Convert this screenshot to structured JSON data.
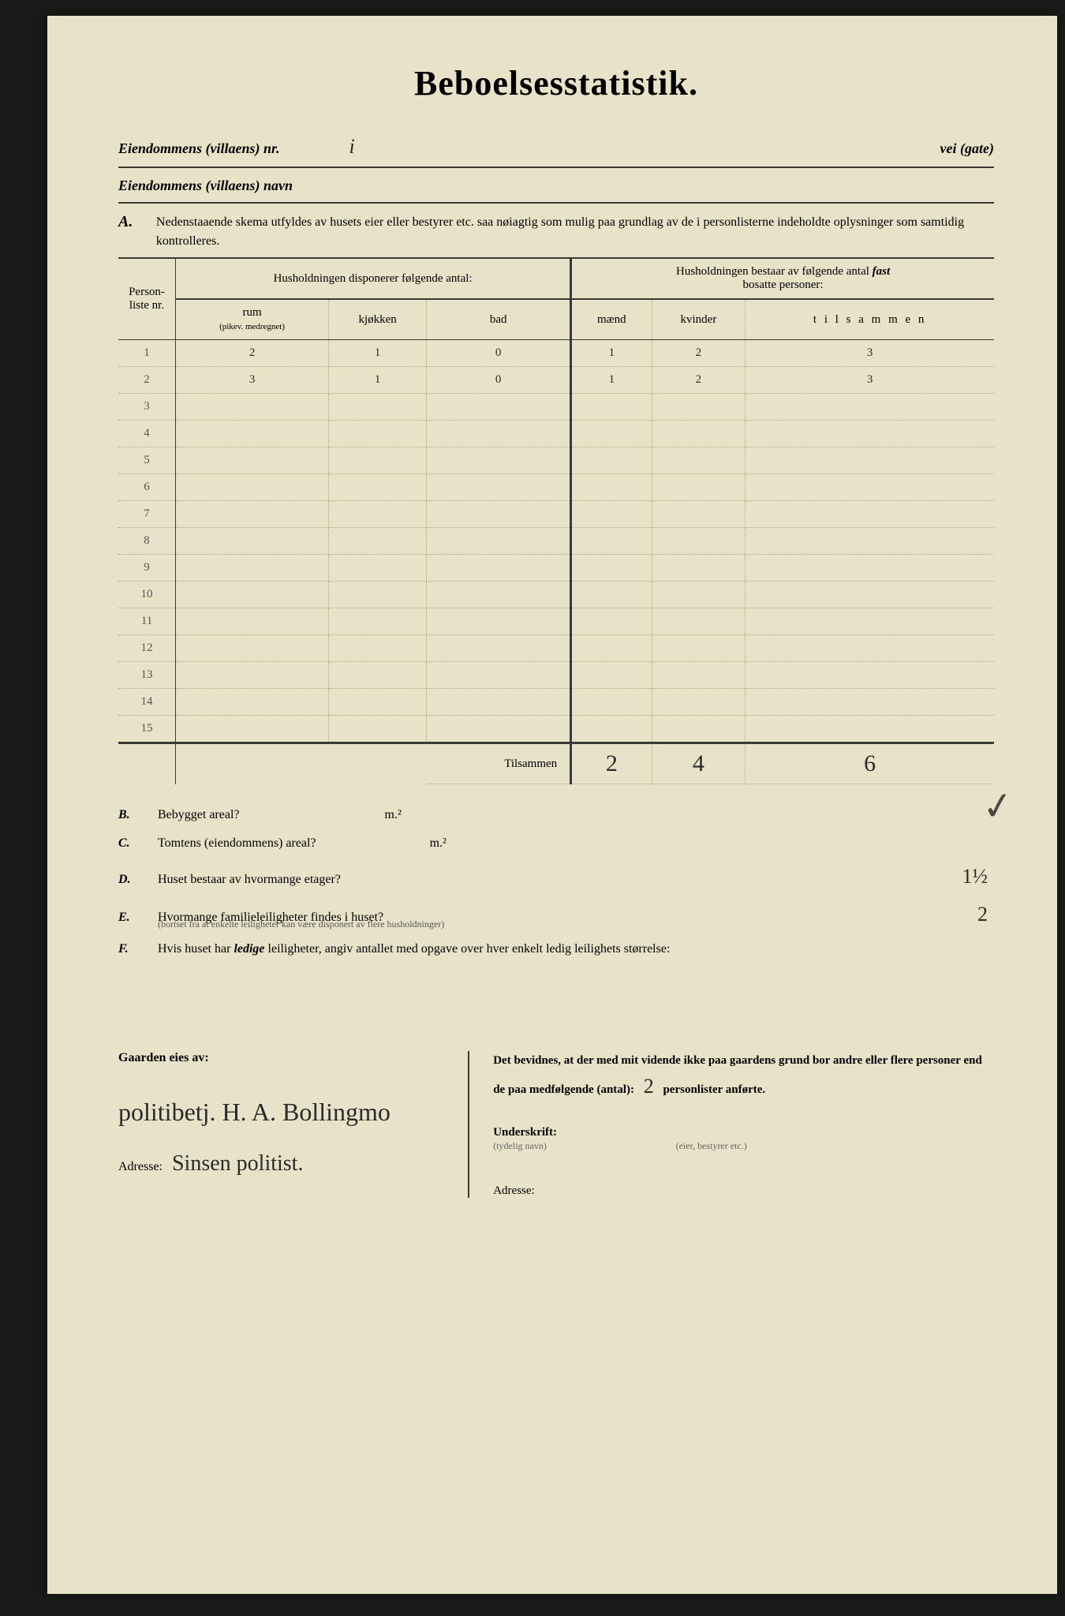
{
  "title": "Beboelsesstatistik.",
  "header": {
    "property_nr_label": "Eiendommens (villaens) nr.",
    "property_nr_value": "i",
    "street_label": "vei (gate)",
    "property_name_label": "Eiendommens (villaens) navn"
  },
  "section_a": {
    "letter": "A.",
    "instructions": "Nedenstaaende skema utfyldes av husets eier eller bestyrer etc. saa nøiagtig som mulig paa grundlag av de i personlisterne indeholdte oplysninger som samtidig kontrolleres."
  },
  "table": {
    "col_personliste": "Person-liste nr.",
    "group_left": "Husholdningen disponerer følgende antal:",
    "group_right_line1": "Husholdningen bestaar av følgende antal",
    "group_right_bold": "fast",
    "group_right_line2": "bosatte personer:",
    "col_rum": "rum",
    "col_rum_sub": "(pikev. medregnet)",
    "col_kjokken": "kjøkken",
    "col_bad": "bad",
    "col_maend": "mænd",
    "col_kvinder": "kvinder",
    "col_tilsammen": "t i l s a m m e n",
    "rows": [
      {
        "nr": "1",
        "rum": "2",
        "kjokken": "1",
        "bad": "0",
        "maend": "1",
        "kvinder": "2",
        "tilsammen": "3"
      },
      {
        "nr": "2",
        "rum": "3",
        "kjokken": "1",
        "bad": "0",
        "maend": "1",
        "kvinder": "2",
        "tilsammen": "3"
      },
      {
        "nr": "3"
      },
      {
        "nr": "4"
      },
      {
        "nr": "5"
      },
      {
        "nr": "6"
      },
      {
        "nr": "7"
      },
      {
        "nr": "8"
      },
      {
        "nr": "9"
      },
      {
        "nr": "10"
      },
      {
        "nr": "11"
      },
      {
        "nr": "12"
      },
      {
        "nr": "13"
      },
      {
        "nr": "14"
      },
      {
        "nr": "15"
      }
    ],
    "totals_label": "Tilsammen",
    "totals": {
      "maend": "2",
      "kvinder": "4",
      "tilsammen": "6"
    },
    "checkmark": "✓"
  },
  "questions": {
    "b": {
      "letter": "B.",
      "text": "Bebygget areal?",
      "unit": "m.²"
    },
    "c": {
      "letter": "C.",
      "text": "Tomtens (eiendommens) areal?",
      "unit": "m.²"
    },
    "d": {
      "letter": "D.",
      "text": "Huset bestaar av hvormange etager?",
      "answer": "1½"
    },
    "e": {
      "letter": "E.",
      "text": "Hvormange familieleiligheter findes i huset?",
      "answer": "2",
      "sub": "(bortset fra at enkelte leiligheter kan være disponert av flere husholdninger)"
    },
    "f": {
      "letter": "F.",
      "text_pre": "Hvis huset har ",
      "text_bold": "ledige",
      "text_post": " leiligheter, angiv antallet med opgave over hver enkelt ledig leilighets størrelse:"
    }
  },
  "footer": {
    "owned_by_label": "Gaarden eies av:",
    "owner_signature": "politibetj. H. A. Bollingmo",
    "address_label": "Adresse:",
    "address_value": "Sinsen politist.",
    "attestation_pre": "Det bevidnes, at der med mit vidende ikke paa gaardens grund bor andre eller flere personer end de paa medfølgende (antal): ",
    "attestation_count": "2",
    "attestation_post": " personlister anførte.",
    "underskrift_label": "Underskrift:",
    "underskrift_sub": "(tydelig navn)",
    "role_sub": "(eier, bestyrer etc.)",
    "address2_label": "Adresse:"
  }
}
